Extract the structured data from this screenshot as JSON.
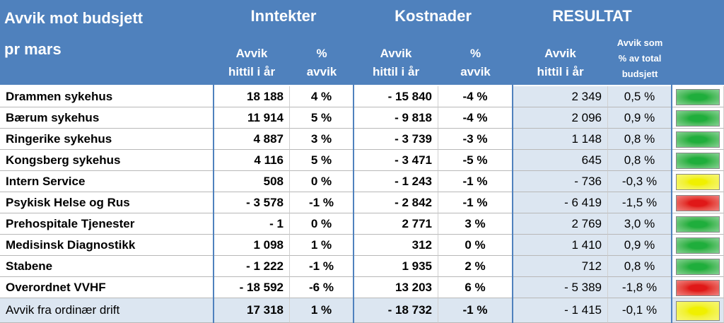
{
  "header": {
    "title": [
      "Avvik mot budsjett",
      "pr mars"
    ],
    "groups": [
      "Inntekter",
      "Kostnader",
      "RESULTAT"
    ],
    "subheaders": [
      [
        "Avvik",
        "hittil i år"
      ],
      [
        "%",
        "avvik"
      ],
      [
        "Avvik",
        "hittil i år"
      ],
      [
        "%",
        "avvik"
      ],
      [
        "Avvik",
        "hittil i år"
      ],
      [
        "Avvik som",
        "% av total",
        "budsjett"
      ]
    ]
  },
  "table": {
    "rows": [
      [
        "Drammen sykehus",
        "18 188",
        "4 %",
        "- 15 840",
        "-4 %",
        "2 349",
        "0,5 %"
      ],
      [
        "Bærum sykehus",
        "11 914",
        "5 %",
        "- 9 818",
        "-4 %",
        "2 096",
        "0,9 %"
      ],
      [
        "Ringerike sykehus",
        "4 887",
        "3 %",
        "- 3 739",
        "-3 %",
        "1 148",
        "0,8 %"
      ],
      [
        "Kongsberg sykehus",
        "4 116",
        "5 %",
        "- 3 471",
        "-5 %",
        "645",
        "0,8 %"
      ],
      [
        "Intern Service",
        "508",
        "0 %",
        "- 1 243",
        "-1 %",
        "- 736",
        "-0,3 %"
      ],
      [
        "Psykisk Helse og Rus",
        "- 3 578",
        "-1 %",
        "- 2 842",
        "-1 %",
        "- 6 419",
        "-1,5 %"
      ],
      [
        "Prehospitale Tjenester",
        "- 1",
        "0 %",
        "2 771",
        "3 %",
        "2 769",
        "3,0 %"
      ],
      [
        "Medisinsk Diagnostikk",
        "1 098",
        "1 %",
        "312",
        "0 %",
        "1 410",
        "0,9 %"
      ],
      [
        "Stabene",
        "- 1 222",
        "-1 %",
        "1 935",
        "2 %",
        "712",
        "0,8 %"
      ],
      [
        "Overordnet VVHF",
        "- 18 592",
        "-6 %",
        "13 203",
        "6 %",
        "- 5 389",
        "-1,8 %"
      ],
      [
        "Avvik fra ordinær drift",
        "17 318",
        "1 %",
        "- 18 732",
        "-1 %",
        "- 1 415",
        "-0,1 %"
      ]
    ],
    "indicators": [
      "#1fae3c",
      "#1fae3c",
      "#1fae3c",
      "#1fae3c",
      "#f0f000",
      "#e01818",
      "#1fae3c",
      "#1fae3c",
      "#1fae3c",
      "#e01818",
      "#f0f000"
    ]
  }
}
